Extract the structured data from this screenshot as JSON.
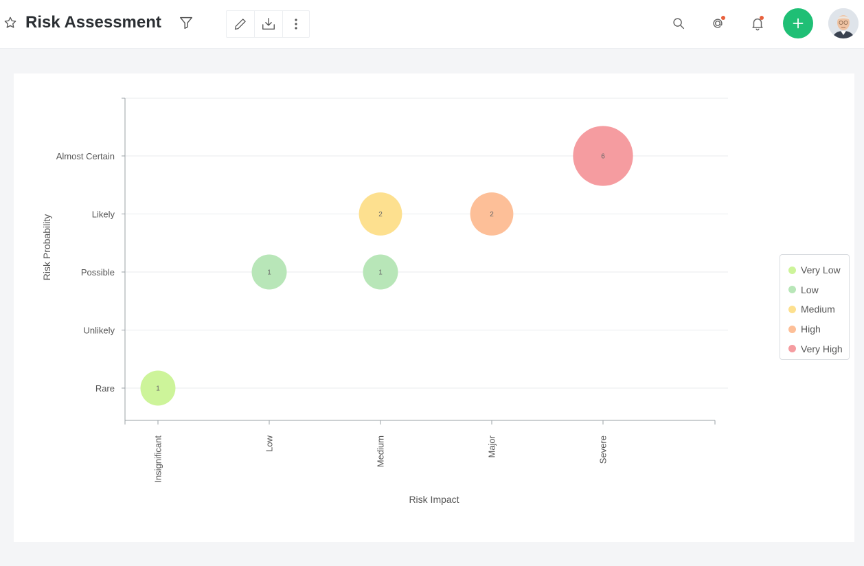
{
  "header": {
    "title": "Risk Assessment",
    "icons": [
      "star-icon",
      "filter-icon",
      "pencil-icon",
      "download-icon",
      "more-vertical-icon",
      "search-icon",
      "mention-icon",
      "bell-icon",
      "plus-icon"
    ]
  },
  "colors": {
    "accent_green": "#1fbf75",
    "notification_dot": "#e8603c"
  },
  "chart_data": {
    "type": "scatter",
    "title": "",
    "xlabel": "Risk Impact",
    "ylabel": "Risk Probability",
    "x_categories": [
      "Insignificant",
      "Low",
      "Medium",
      "Major",
      "Severe"
    ],
    "y_categories": [
      "Rare",
      "Unlikely",
      "Possible",
      "Likely",
      "Almost Certain"
    ],
    "grid": true,
    "legend_position": "right",
    "series": [
      {
        "name": "Very Low",
        "color": "#cdf49a",
        "points": [
          {
            "x": "Insignificant",
            "y": "Rare",
            "value": 1
          }
        ]
      },
      {
        "name": "Low",
        "color": "#b8e6b8",
        "points": [
          {
            "x": "Low",
            "y": "Possible",
            "value": 1
          },
          {
            "x": "Medium",
            "y": "Possible",
            "value": 1
          }
        ]
      },
      {
        "name": "Medium",
        "color": "#fde08f",
        "points": [
          {
            "x": "Medium",
            "y": "Likely",
            "value": 2
          }
        ]
      },
      {
        "name": "High",
        "color": "#fdbf98",
        "points": [
          {
            "x": "Major",
            "y": "Likely",
            "value": 2
          }
        ]
      },
      {
        "name": "Very High",
        "color": "#f59ca0",
        "points": [
          {
            "x": "Severe",
            "y": "Almost Certain",
            "value": 6
          }
        ]
      }
    ]
  }
}
